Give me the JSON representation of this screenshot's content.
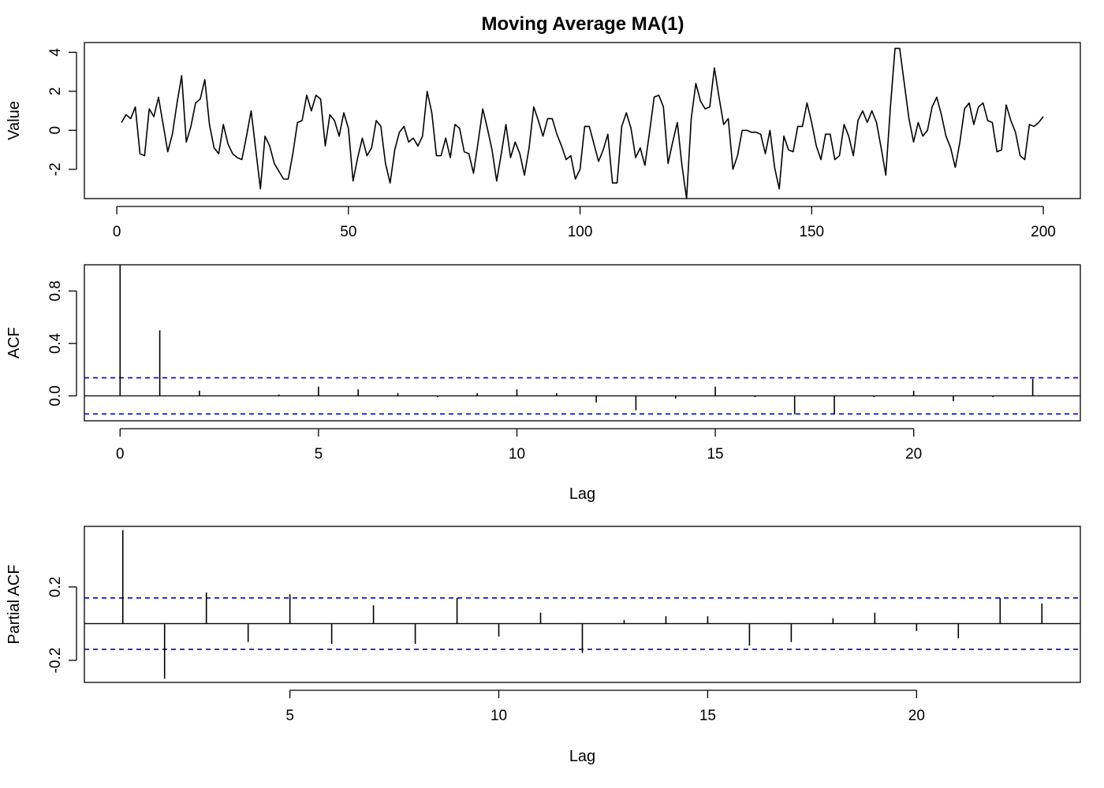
{
  "title": "Moving Average MA(1)",
  "chart_data": [
    {
      "type": "line",
      "ylabel": "Value",
      "xlim": [
        -7,
        208
      ],
      "ylim": [
        -3.5,
        4.5
      ],
      "xticks": [
        0,
        50,
        100,
        150,
        200
      ],
      "yticks": [
        -2,
        0,
        2,
        4
      ],
      "x_start": 1,
      "values": [
        0.4,
        0.8,
        0.6,
        1.2,
        -1.2,
        -1.3,
        1.1,
        0.7,
        1.7,
        0.3,
        -1.1,
        -0.2,
        1.4,
        2.8,
        -0.6,
        0.2,
        1.4,
        1.6,
        2.6,
        0.3,
        -0.9,
        -1.2,
        0.3,
        -0.7,
        -1.2,
        -1.4,
        -1.5,
        -0.3,
        1.0,
        -1.0,
        -3.0,
        -0.3,
        -0.8,
        -1.7,
        -2.1,
        -2.5,
        -2.5,
        -1.2,
        0.4,
        0.5,
        1.8,
        1.0,
        1.8,
        1.6,
        -0.8,
        0.8,
        0.5,
        -0.3,
        0.9,
        0.1,
        -2.6,
        -1.4,
        -0.4,
        -1.3,
        -0.9,
        0.5,
        0.2,
        -1.7,
        -2.7,
        -1.0,
        -0.1,
        0.2,
        -0.6,
        -0.4,
        -0.8,
        -0.3,
        2.0,
        0.9,
        -1.3,
        -1.3,
        -0.4,
        -1.4,
        0.3,
        0.1,
        -1.1,
        -1.2,
        -2.2,
        -0.6,
        1.1,
        0.1,
        -1.0,
        -2.6,
        -1.2,
        0.3,
        -1.4,
        -0.6,
        -1.2,
        -2.3,
        -0.9,
        1.2,
        0.5,
        -0.3,
        0.6,
        0.6,
        -0.2,
        -0.8,
        -1.5,
        -1.3,
        -2.5,
        -2.0,
        0.2,
        0.2,
        -0.7,
        -1.6,
        -1.0,
        -0.2,
        -2.7,
        -2.7,
        0.2,
        0.9,
        0.1,
        -1.4,
        -0.9,
        -1.8,
        -0.1,
        1.7,
        1.8,
        1.2,
        -1.7,
        -0.6,
        0.4,
        -1.8,
        -3.5,
        0.6,
        2.4,
        1.5,
        1.1,
        1.2,
        3.2,
        1.7,
        0.3,
        0.6,
        -2.0,
        -1.3,
        0.0,
        0.0,
        -0.1,
        -0.1,
        -0.2,
        -1.2,
        0.0,
        -1.9,
        -3.0,
        -0.3,
        -1.0,
        -1.1,
        0.2,
        0.2,
        1.4,
        0.4,
        -0.8,
        -1.5,
        -0.2,
        -0.2,
        -1.5,
        -1.3,
        0.3,
        -0.3,
        -1.3,
        0.5,
        1.0,
        0.4,
        1.0,
        0.4,
        -0.9,
        -2.3,
        1.2,
        4.2,
        4.2,
        2.4,
        0.6,
        -0.6,
        0.4,
        -0.3,
        0.0,
        1.2,
        1.7,
        0.8,
        -0.3,
        -0.9,
        -1.9,
        -0.6,
        1.1,
        1.4,
        0.3,
        1.2,
        1.4,
        0.5,
        0.4,
        -1.1,
        -1.0,
        1.3,
        0.5,
        -0.1,
        -1.3,
        -1.5,
        0.3,
        0.2,
        0.4,
        0.7
      ]
    },
    {
      "type": "bar",
      "xlabel": "Lag",
      "ylabel": "ACF",
      "xlim": [
        -0.9,
        24.2
      ],
      "ylim": [
        -0.19,
        1.0
      ],
      "xticks": [
        0,
        5,
        10,
        15,
        20
      ],
      "yticks": [
        0.0,
        0.4,
        0.8
      ],
      "ytick_labels": [
        "0.0",
        "0.4",
        "0.8"
      ],
      "conf_limit": 0.138,
      "lags": [
        0,
        1,
        2,
        3,
        4,
        5,
        6,
        7,
        8,
        9,
        10,
        11,
        12,
        13,
        14,
        15,
        16,
        17,
        18,
        19,
        20,
        21,
        22,
        23
      ],
      "values": [
        1.0,
        0.5,
        0.04,
        0.0,
        0.01,
        0.07,
        0.05,
        0.02,
        -0.01,
        0.02,
        0.05,
        0.02,
        -0.05,
        -0.11,
        -0.02,
        0.07,
        -0.01,
        -0.14,
        -0.14,
        -0.01,
        0.04,
        -0.04,
        -0.01,
        0.13
      ]
    },
    {
      "type": "bar",
      "xlabel": "Lag",
      "ylabel": "Partial ACF",
      "xlim": [
        0.08,
        23.92
      ],
      "ylim": [
        -0.32,
        0.53
      ],
      "xticks": [
        5,
        10,
        15,
        20
      ],
      "yticks": [
        -0.2,
        0.2
      ],
      "ytick_labels": [
        "-0.2",
        "0.2"
      ],
      "conf_limit": 0.14,
      "lags": [
        1,
        2,
        3,
        4,
        5,
        6,
        7,
        8,
        9,
        10,
        11,
        12,
        13,
        14,
        15,
        16,
        17,
        18,
        19,
        20,
        21,
        22,
        23
      ],
      "values": [
        0.51,
        -0.3,
        0.17,
        -0.1,
        0.16,
        -0.11,
        0.1,
        -0.11,
        0.14,
        -0.07,
        0.06,
        -0.16,
        0.02,
        0.04,
        0.04,
        -0.12,
        -0.1,
        0.03,
        0.06,
        -0.04,
        -0.08,
        0.14,
        0.11
      ]
    }
  ]
}
